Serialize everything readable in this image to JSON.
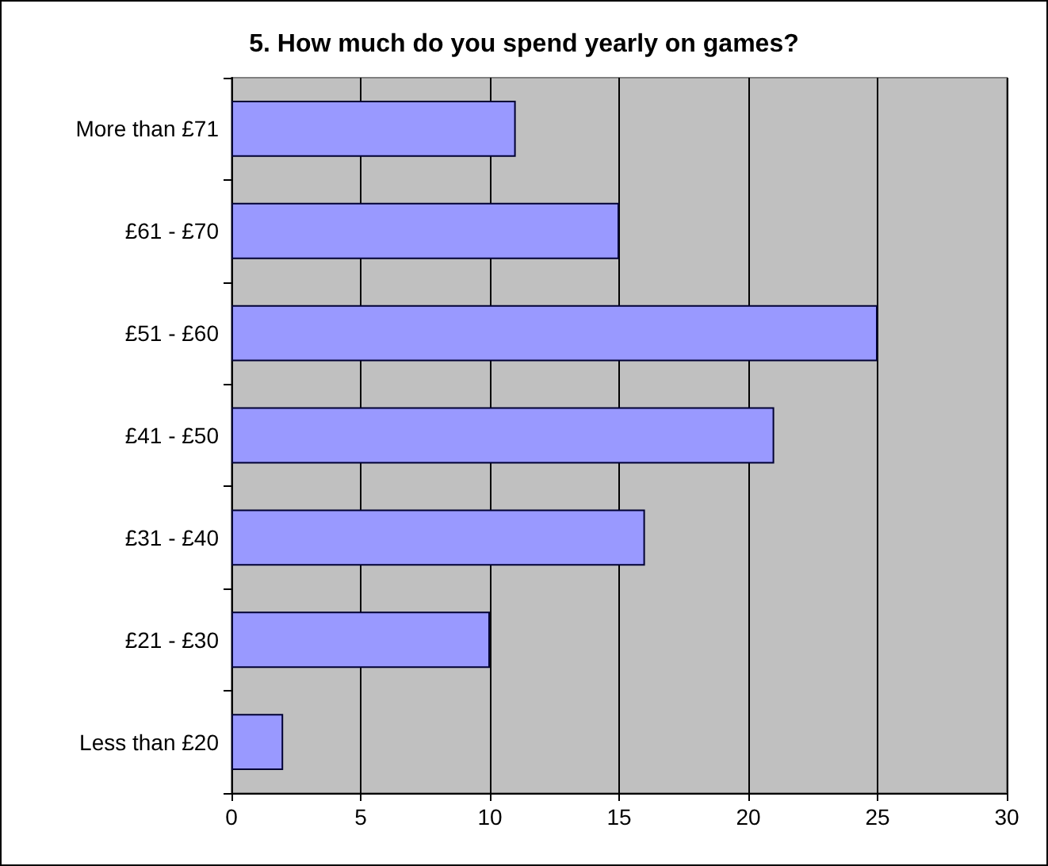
{
  "chart_data": {
    "type": "bar",
    "orientation": "horizontal",
    "title": "5. How much do you spend yearly on games?",
    "categories": [
      "More than £71",
      "£61 - £70",
      "£51 - £60",
      "£41 - £50",
      "£31 - £40",
      "£21 - £30",
      "Less than £20"
    ],
    "values": [
      11,
      15,
      25,
      21,
      16,
      10,
      2
    ],
    "color": "#9999ff",
    "xlim": [
      0,
      30
    ],
    "xticks": [
      0,
      5,
      10,
      15,
      20,
      25,
      30
    ],
    "grid": "x"
  }
}
